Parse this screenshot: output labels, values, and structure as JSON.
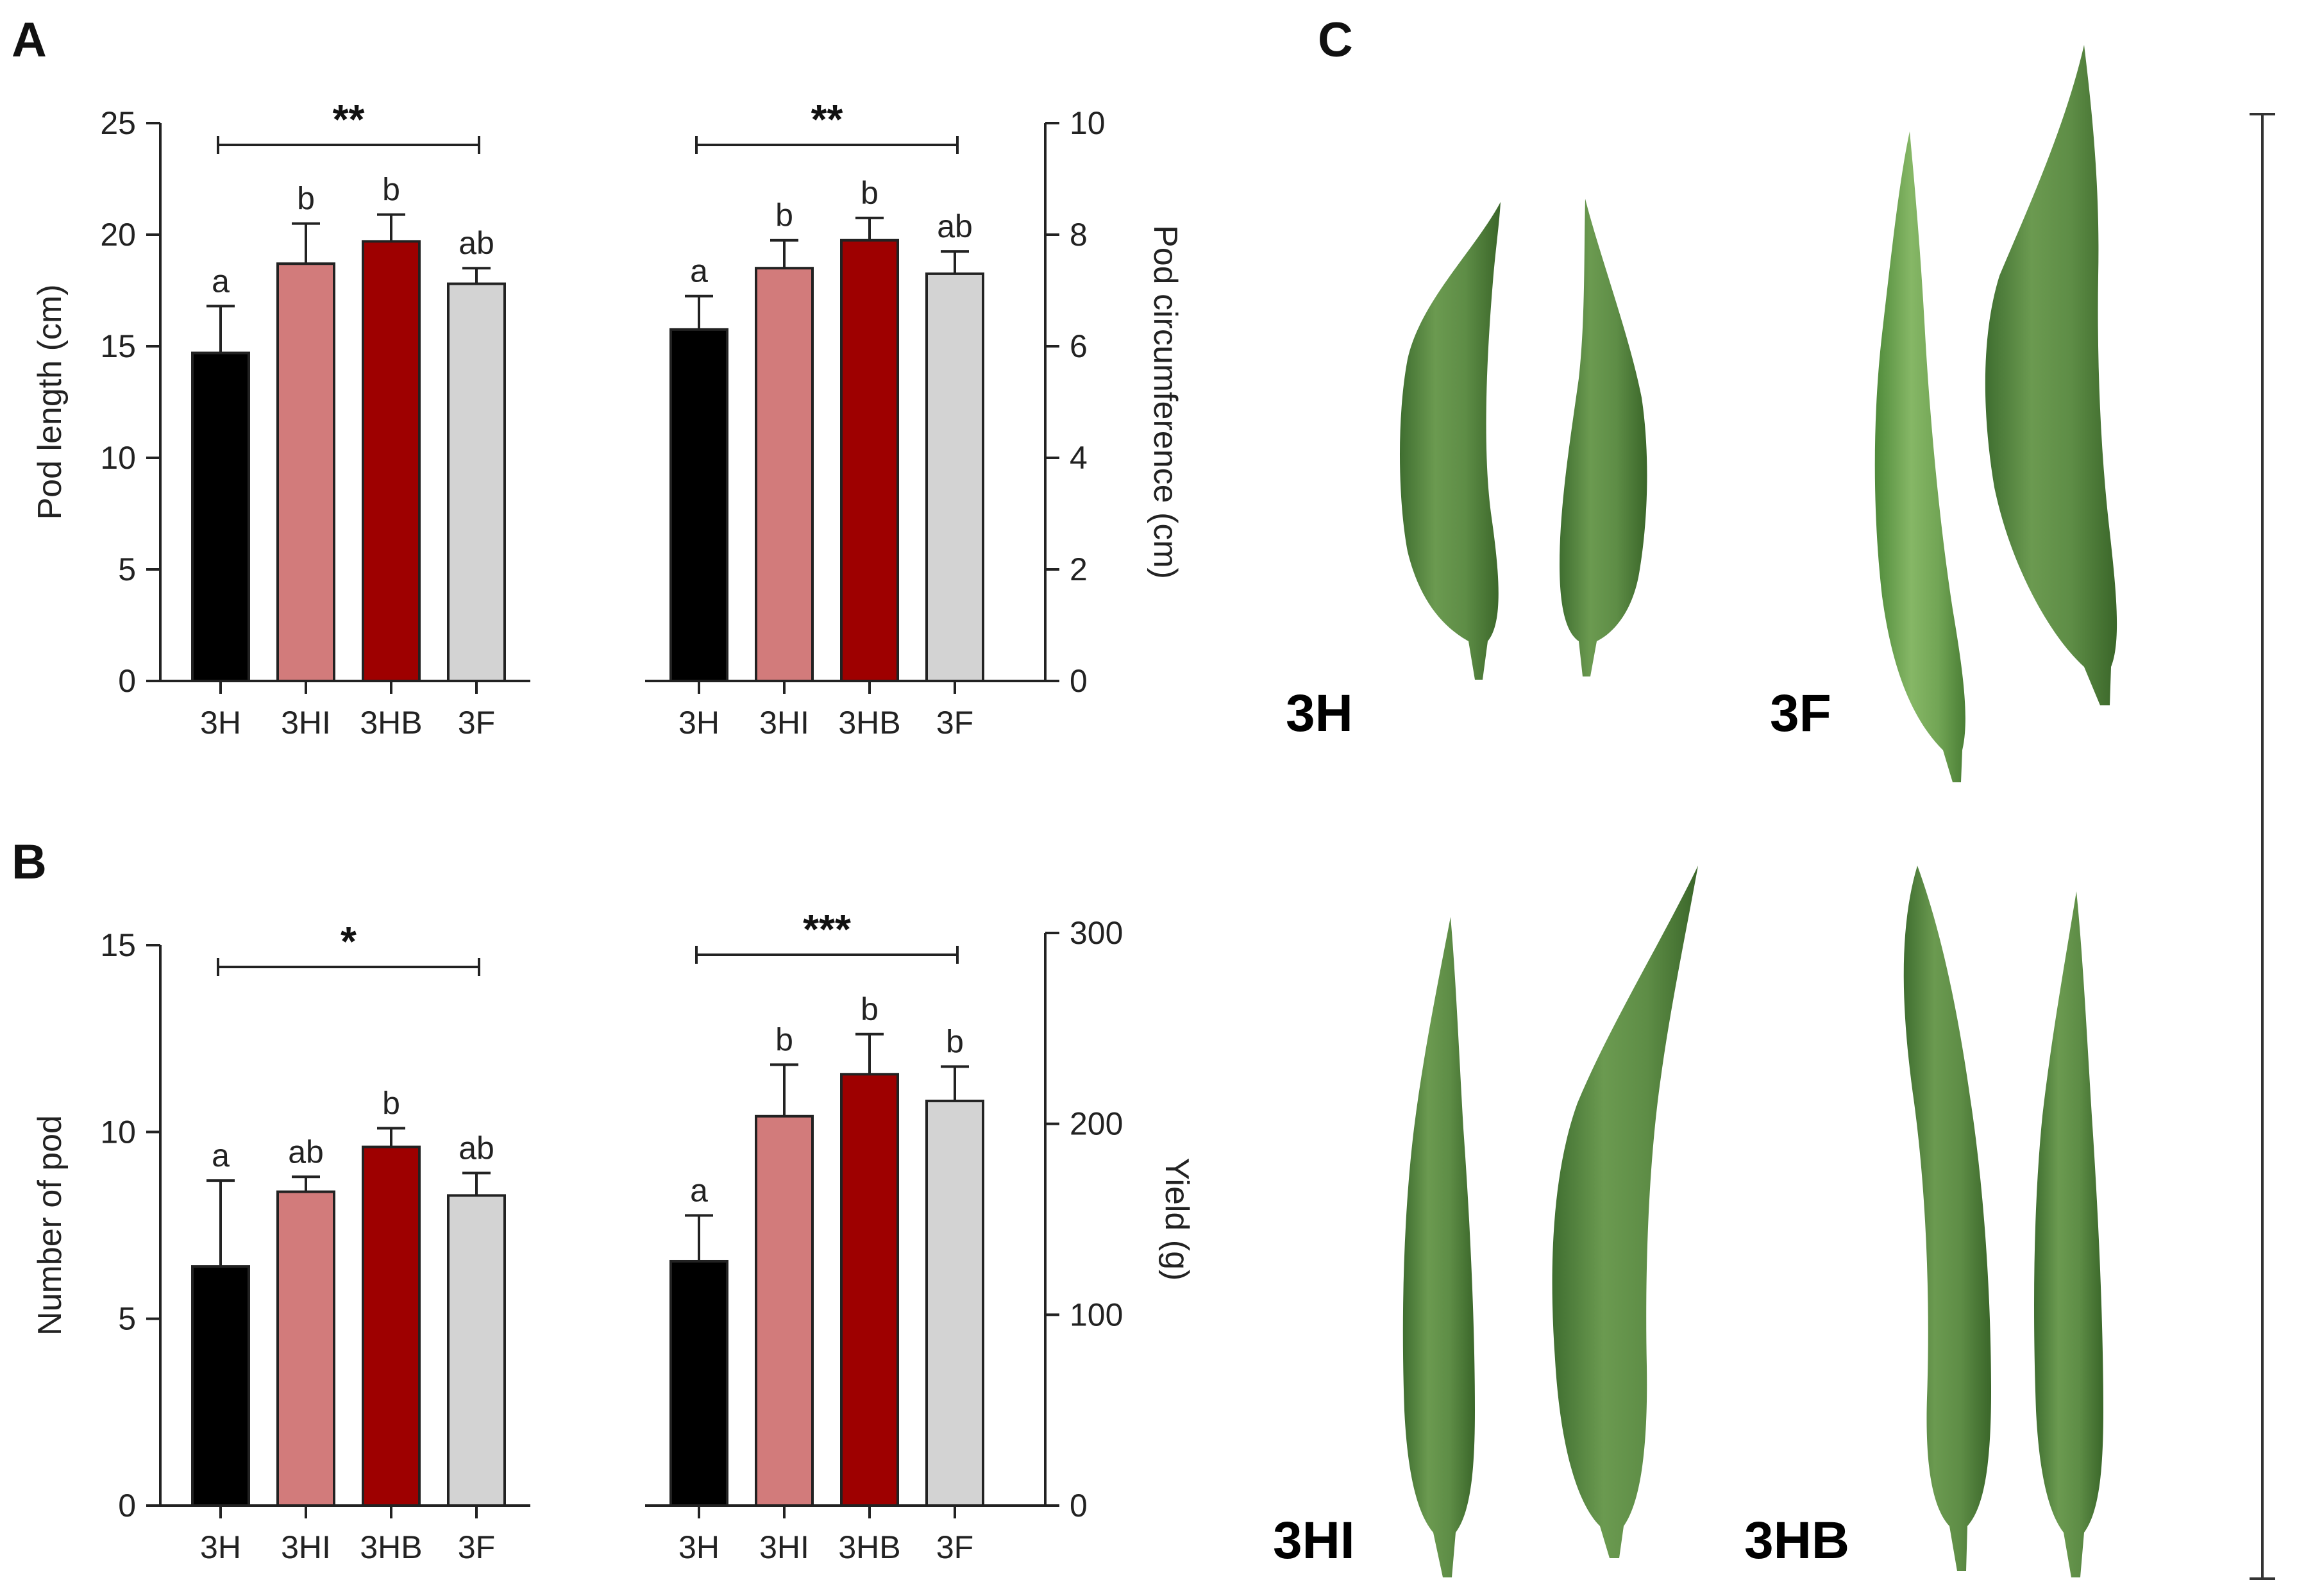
{
  "panel_labels": {
    "a": "A",
    "b": "B",
    "c": "C"
  },
  "colors": {
    "3H": "#000000",
    "3HI": "#d27b7b",
    "3HB": "#9e0000",
    "3F": "#d3d3d3",
    "okra": "#5c8a45",
    "okra_dark": "#4a7838",
    "okra_tip": "#c2c45e"
  },
  "photo_labels": {
    "tl": "3H",
    "tr": "3F",
    "bl": "3HI",
    "br": "3HB"
  },
  "chart_data": [
    {
      "id": "pod-length",
      "type": "bar",
      "categories": [
        "3H",
        "3HI",
        "3HB",
        "3F"
      ],
      "values": [
        14.7,
        18.7,
        19.7,
        17.8
      ],
      "errors": [
        2.1,
        1.8,
        1.2,
        0.7
      ],
      "letters": [
        "a",
        "b",
        "b",
        "ab"
      ],
      "significance": "**",
      "ylabel": "Pod length (cm)",
      "ylim": [
        0,
        25
      ],
      "yticks": [
        0,
        5,
        10,
        15,
        20,
        25
      ],
      "axis_side": "left"
    },
    {
      "id": "pod-circumference",
      "type": "bar",
      "categories": [
        "3H",
        "3HI",
        "3HB",
        "3F"
      ],
      "values": [
        6.3,
        7.4,
        7.9,
        7.3
      ],
      "errors": [
        0.6,
        0.5,
        0.4,
        0.4
      ],
      "letters": [
        "a",
        "b",
        "b",
        "ab"
      ],
      "significance": "**",
      "ylabel": "Pod circumference (cm)",
      "ylim": [
        0,
        10
      ],
      "yticks": [
        0,
        2,
        4,
        6,
        8,
        10
      ],
      "axis_side": "right"
    },
    {
      "id": "pod-number",
      "type": "bar",
      "categories": [
        "3H",
        "3HI",
        "3HB",
        "3F"
      ],
      "values": [
        6.4,
        8.4,
        9.6,
        8.3
      ],
      "errors": [
        2.3,
        0.4,
        0.5,
        0.6
      ],
      "letters": [
        "a",
        "ab",
        "b",
        "ab"
      ],
      "significance": "*",
      "ylabel": "Number of pod",
      "ylim": [
        0,
        15
      ],
      "yticks": [
        0,
        5,
        10,
        15
      ],
      "axis_side": "left"
    },
    {
      "id": "yield",
      "type": "bar",
      "categories": [
        "3H",
        "3HI",
        "3HB",
        "3F"
      ],
      "values": [
        128,
        204,
        226,
        212
      ],
      "errors": [
        24,
        27,
        21,
        18
      ],
      "letters": [
        "a",
        "b",
        "b",
        "b"
      ],
      "significance": "***",
      "ylabel": "Yield (g)",
      "ylim": [
        0,
        300
      ],
      "yticks": [
        0,
        100,
        200,
        300
      ],
      "axis_side": "right"
    }
  ]
}
